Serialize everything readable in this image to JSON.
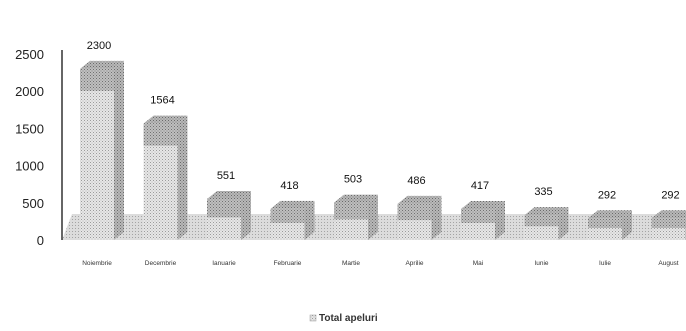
{
  "chart_data": {
    "type": "bar",
    "title": "",
    "xlabel": "",
    "ylabel": "",
    "categories": [
      "Noiembrie",
      "Decembrie",
      "Ianuarie",
      "Februarie",
      "Martie",
      "Aprilie",
      "Mai",
      "Iunie",
      "Iulie",
      "August"
    ],
    "series": [
      {
        "name": "Total apeluri",
        "values": [
          2300,
          1564,
          551,
          418,
          503,
          486,
          417,
          335,
          292,
          292
        ]
      }
    ],
    "data_labels": [
      "2300",
      "1564",
      "551",
      "418",
      "503",
      "486",
      "417",
      "335",
      "292",
      "292"
    ],
    "y_ticks": [
      "0",
      "500",
      "1000",
      "1500",
      "2000",
      "2500"
    ],
    "ylim": [
      0,
      2500
    ],
    "grid": false,
    "legend": "bottom",
    "legend_text": "Total apeluri",
    "colors": {
      "bar_light": "#d4d4d4",
      "bar_top": "#9a9a9a",
      "floor": "#cfcfcf",
      "axis": "#333333"
    }
  }
}
